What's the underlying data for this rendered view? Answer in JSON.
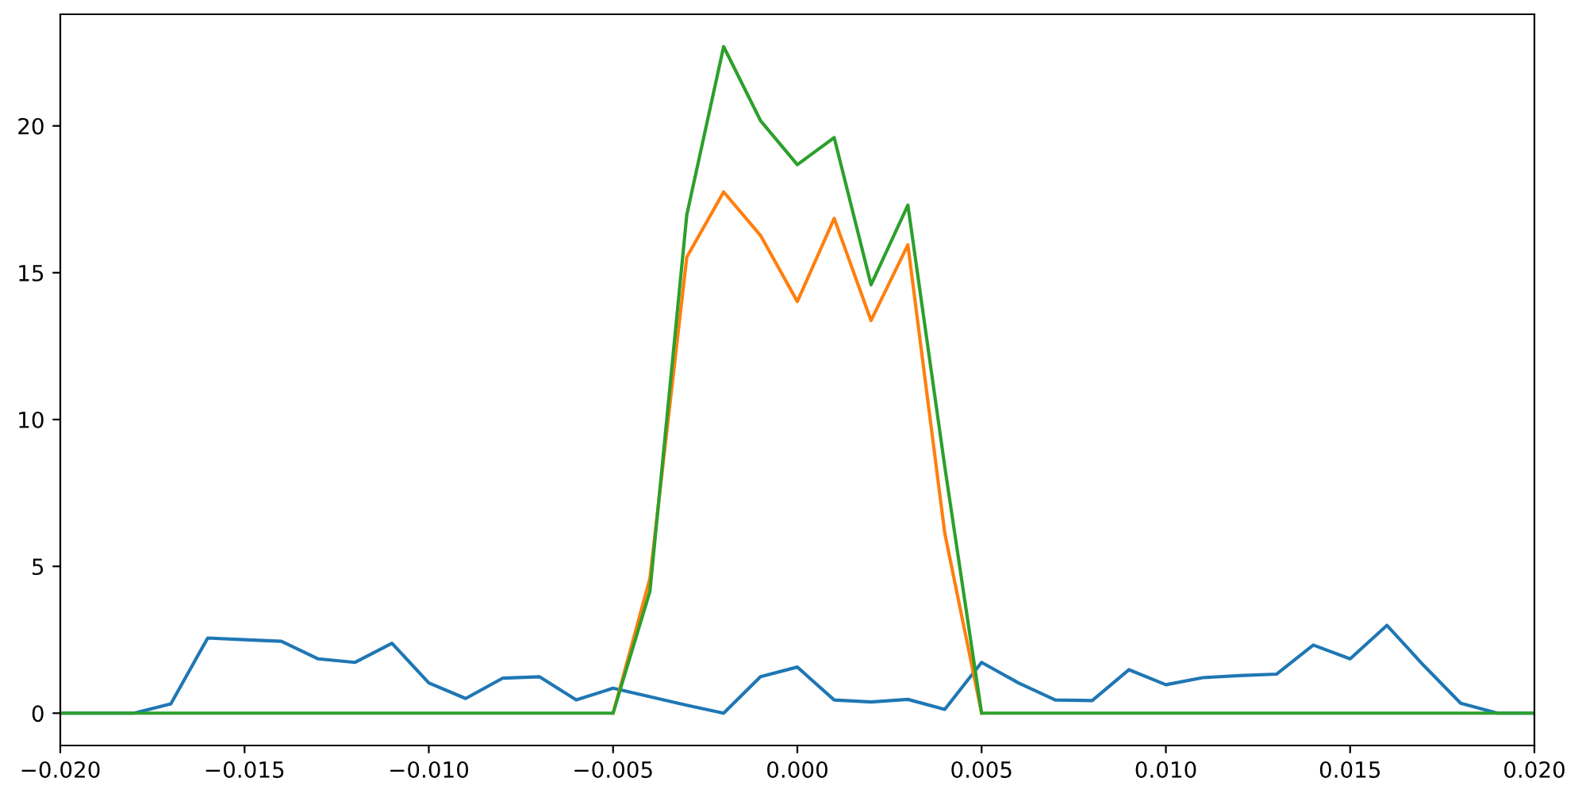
{
  "chart_data": {
    "type": "line",
    "x": [
      -0.02,
      -0.019,
      -0.018,
      -0.017,
      -0.016,
      -0.015,
      -0.014,
      -0.013,
      -0.012,
      -0.011,
      -0.01,
      -0.009,
      -0.008,
      -0.007,
      -0.006,
      -0.005,
      -0.004,
      -0.003,
      -0.002,
      -0.001,
      0.0,
      0.001,
      0.002,
      0.003,
      0.004,
      0.005,
      0.006,
      0.007,
      0.008,
      0.009,
      0.01,
      0.011,
      0.012,
      0.013,
      0.014,
      0.015,
      0.016,
      0.017,
      0.018,
      0.019,
      0.02
    ],
    "series": [
      {
        "color": "#1f77b4",
        "values": [
          0,
          0,
          0,
          0.32,
          2.56,
          2.5,
          2.45,
          1.85,
          1.73,
          2.38,
          1.03,
          0.5,
          1.19,
          1.24,
          0.45,
          0.85,
          0.56,
          0.27,
          0,
          1.24,
          1.57,
          0.45,
          0.38,
          0.47,
          0.13,
          1.73,
          1.03,
          0.45,
          0.43,
          1.48,
          0.97,
          1.21,
          1.28,
          1.33,
          2.32,
          1.85,
          2.99,
          1.62,
          0.34,
          0,
          0
        ]
      },
      {
        "color": "#ff7f0e",
        "values": [
          null,
          null,
          null,
          null,
          null,
          null,
          null,
          null,
          null,
          null,
          null,
          null,
          null,
          null,
          null,
          0,
          4.59,
          15.53,
          17.75,
          16.27,
          14.02,
          16.85,
          13.37,
          15.95,
          6.13,
          0,
          null,
          null,
          null,
          null,
          null,
          null,
          null,
          null,
          null,
          null,
          null,
          null,
          null,
          null,
          null
        ]
      },
      {
        "color": "#2ca02c",
        "values": [
          0,
          0,
          0,
          0,
          0,
          0,
          0,
          0,
          0,
          0,
          0,
          0,
          0,
          0,
          0,
          0,
          4.15,
          16.97,
          22.7,
          20.18,
          18.68,
          19.6,
          14.59,
          17.3,
          8.4,
          0,
          0,
          0,
          0,
          0,
          0,
          0,
          0,
          0,
          0,
          0,
          0,
          0,
          0,
          0,
          0
        ]
      }
    ],
    "xlim": [
      -0.02,
      0.02
    ],
    "xticks": [
      {
        "value": -0.02,
        "label": "−0.020"
      },
      {
        "value": -0.015,
        "label": "−0.015"
      },
      {
        "value": -0.01,
        "label": "−0.010"
      },
      {
        "value": -0.005,
        "label": "−0.005"
      },
      {
        "value": 0.0,
        "label": "0.000"
      },
      {
        "value": 0.005,
        "label": "0.005"
      },
      {
        "value": 0.01,
        "label": "0.010"
      },
      {
        "value": 0.015,
        "label": "0.015"
      },
      {
        "value": 0.02,
        "label": "0.020"
      }
    ],
    "ylim": [
      -1.1,
      23.8
    ],
    "yticks": [
      0,
      5,
      10,
      15,
      20
    ],
    "grid": false,
    "marker": "none",
    "line_style": "solid"
  }
}
